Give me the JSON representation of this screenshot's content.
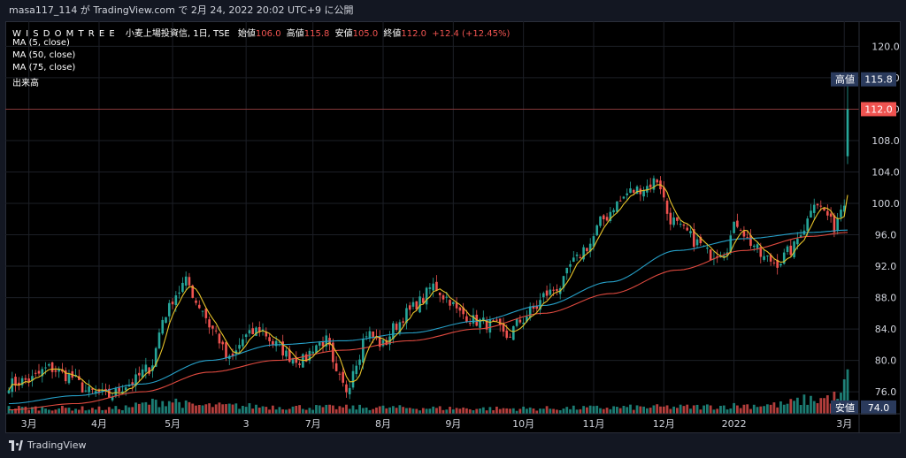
{
  "header": {
    "publish_line": "masa117_114 が TradingView.com で 2月 24, 2022 20:02 UTC+9 に公開"
  },
  "legend": {
    "brand": "W I S D O M T R E E",
    "symbol": "小麦上場投資信, 1日, TSE",
    "open_label": "始値",
    "open_value": "106.0",
    "high_label": "高値",
    "high_value": "115.8",
    "low_label": "安値",
    "low_value": "105.0",
    "close_label": "終値",
    "close_value": "112.0",
    "change": "+12.4 (+12.45%)",
    "indicators": [
      "MA (5, close)",
      "MA (50, close)",
      "MA (75, close)",
      "出来高"
    ]
  },
  "footer": {
    "logo_text": "TradingView"
  },
  "colors": {
    "up": "#26a69a",
    "down": "#ef5350",
    "ma5": "#e6c229",
    "ma50": "#26a0c8",
    "ma75": "#e04a3f",
    "price_tag_close": "#ef5350",
    "price_tag_hl": "#2a3a5c"
  },
  "price_tags": [
    {
      "label": "高値",
      "value": "115.8",
      "price": 115.8,
      "kind": "high"
    },
    {
      "label": "",
      "value": "112.0",
      "price": 112.0,
      "kind": "close"
    },
    {
      "label": "安値",
      "value": "74.0",
      "price": 74.0,
      "kind": "low"
    }
  ],
  "chart_data": {
    "type": "candlestick",
    "y_axis": {
      "ticks": [
        120.0,
        116.0,
        112.0,
        108.0,
        104.0,
        100.0,
        96.0,
        92.0,
        88.0,
        84.0,
        80.0,
        76.0
      ],
      "tick_labels": [
        "120.0",
        "116.0",
        "112.0",
        "108.0",
        "104.0",
        "100.0",
        "96.0",
        "92.0",
        "88.0",
        "84.0",
        "80.0",
        "76.0"
      ],
      "range": [
        73.2,
        123.2
      ]
    },
    "x_axis": {
      "labels": [
        "3月",
        "4月",
        "5月",
        "3",
        "7月",
        "8月",
        "9月",
        "10月",
        "11月",
        "12月",
        "2022",
        "3月"
      ],
      "label_index": [
        6,
        27,
        49,
        71,
        91,
        112,
        133,
        154,
        175,
        196,
        217,
        250
      ],
      "total_bars": 252
    },
    "grid": true,
    "series": [
      {
        "name": "MA (5, close)",
        "key": "ma5"
      },
      {
        "name": "MA (50, close)",
        "key": "ma50"
      },
      {
        "name": "MA (75, close)",
        "key": "ma75"
      }
    ],
    "price_anchors": [
      [
        0,
        77.0
      ],
      [
        6,
        77.5
      ],
      [
        12,
        79.0
      ],
      [
        18,
        78.0
      ],
      [
        24,
        76.0
      ],
      [
        30,
        75.5
      ],
      [
        36,
        77.0
      ],
      [
        42,
        79.0
      ],
      [
        47,
        86.0
      ],
      [
        50,
        88.5
      ],
      [
        53,
        90.0
      ],
      [
        57,
        87.0
      ],
      [
        61,
        84.0
      ],
      [
        66,
        80.0
      ],
      [
        71,
        83.0
      ],
      [
        75,
        84.0
      ],
      [
        80,
        82.0
      ],
      [
        84,
        80.5
      ],
      [
        88,
        80.0
      ],
      [
        92,
        82.0
      ],
      [
        95,
        82.5
      ],
      [
        98,
        78.0
      ],
      [
        101,
        76.3
      ],
      [
        104,
        80.0
      ],
      [
        107,
        83.5
      ],
      [
        112,
        82.0
      ],
      [
        116,
        84.5
      ],
      [
        119,
        86.0
      ],
      [
        123,
        87.5
      ],
      [
        127,
        89.5
      ],
      [
        131,
        88.0
      ],
      [
        135,
        86.0
      ],
      [
        140,
        85.0
      ],
      [
        145,
        84.5
      ],
      [
        149,
        83.0
      ],
      [
        153,
        85.0
      ],
      [
        157,
        86.5
      ],
      [
        161,
        88.5
      ],
      [
        165,
        89.5
      ],
      [
        169,
        92.5
      ],
      [
        173,
        94.5
      ],
      [
        178,
        98.0
      ],
      [
        182,
        100.0
      ],
      [
        186,
        101.5
      ],
      [
        190,
        102.0
      ],
      [
        194,
        103.0
      ],
      [
        198,
        98.0
      ],
      [
        202,
        96.5
      ],
      [
        206,
        95.0
      ],
      [
        210,
        93.5
      ],
      [
        214,
        94.0
      ],
      [
        218,
        97.5
      ],
      [
        222,
        95.0
      ],
      [
        226,
        93.0
      ],
      [
        230,
        92.5
      ],
      [
        234,
        94.0
      ],
      [
        238,
        97.0
      ],
      [
        241,
        100.5
      ],
      [
        244,
        99.0
      ],
      [
        247,
        97.0
      ],
      [
        249,
        99.5
      ],
      [
        250,
        100.5
      ],
      [
        251,
        112.0
      ]
    ],
    "ma50_anchors": [
      [
        0,
        74.5
      ],
      [
        20,
        75.5
      ],
      [
        40,
        77.0
      ],
      [
        60,
        80.0
      ],
      [
        80,
        82.0
      ],
      [
        100,
        82.5
      ],
      [
        120,
        83.5
      ],
      [
        140,
        85.0
      ],
      [
        160,
        87.0
      ],
      [
        180,
        90.0
      ],
      [
        200,
        94.0
      ],
      [
        220,
        95.5
      ],
      [
        240,
        96.3
      ],
      [
        251,
        96.6
      ]
    ],
    "ma75_anchors": [
      [
        0,
        73.7
      ],
      [
        20,
        74.5
      ],
      [
        40,
        76.0
      ],
      [
        60,
        78.5
      ],
      [
        80,
        80.0
      ],
      [
        100,
        81.3
      ],
      [
        120,
        82.5
      ],
      [
        140,
        84.0
      ],
      [
        160,
        86.0
      ],
      [
        180,
        88.5
      ],
      [
        200,
        91.5
      ],
      [
        220,
        94.0
      ],
      [
        240,
        95.8
      ],
      [
        251,
        96.3
      ]
    ],
    "volume_anchors": [
      [
        0,
        1.6
      ],
      [
        30,
        1.4
      ],
      [
        49,
        3.5
      ],
      [
        55,
        2.2
      ],
      [
        100,
        1.7
      ],
      [
        150,
        1.4
      ],
      [
        200,
        1.8
      ],
      [
        230,
        2.4
      ],
      [
        240,
        3.8
      ],
      [
        249,
        4.5
      ],
      [
        251,
        10.2
      ]
    ]
  }
}
